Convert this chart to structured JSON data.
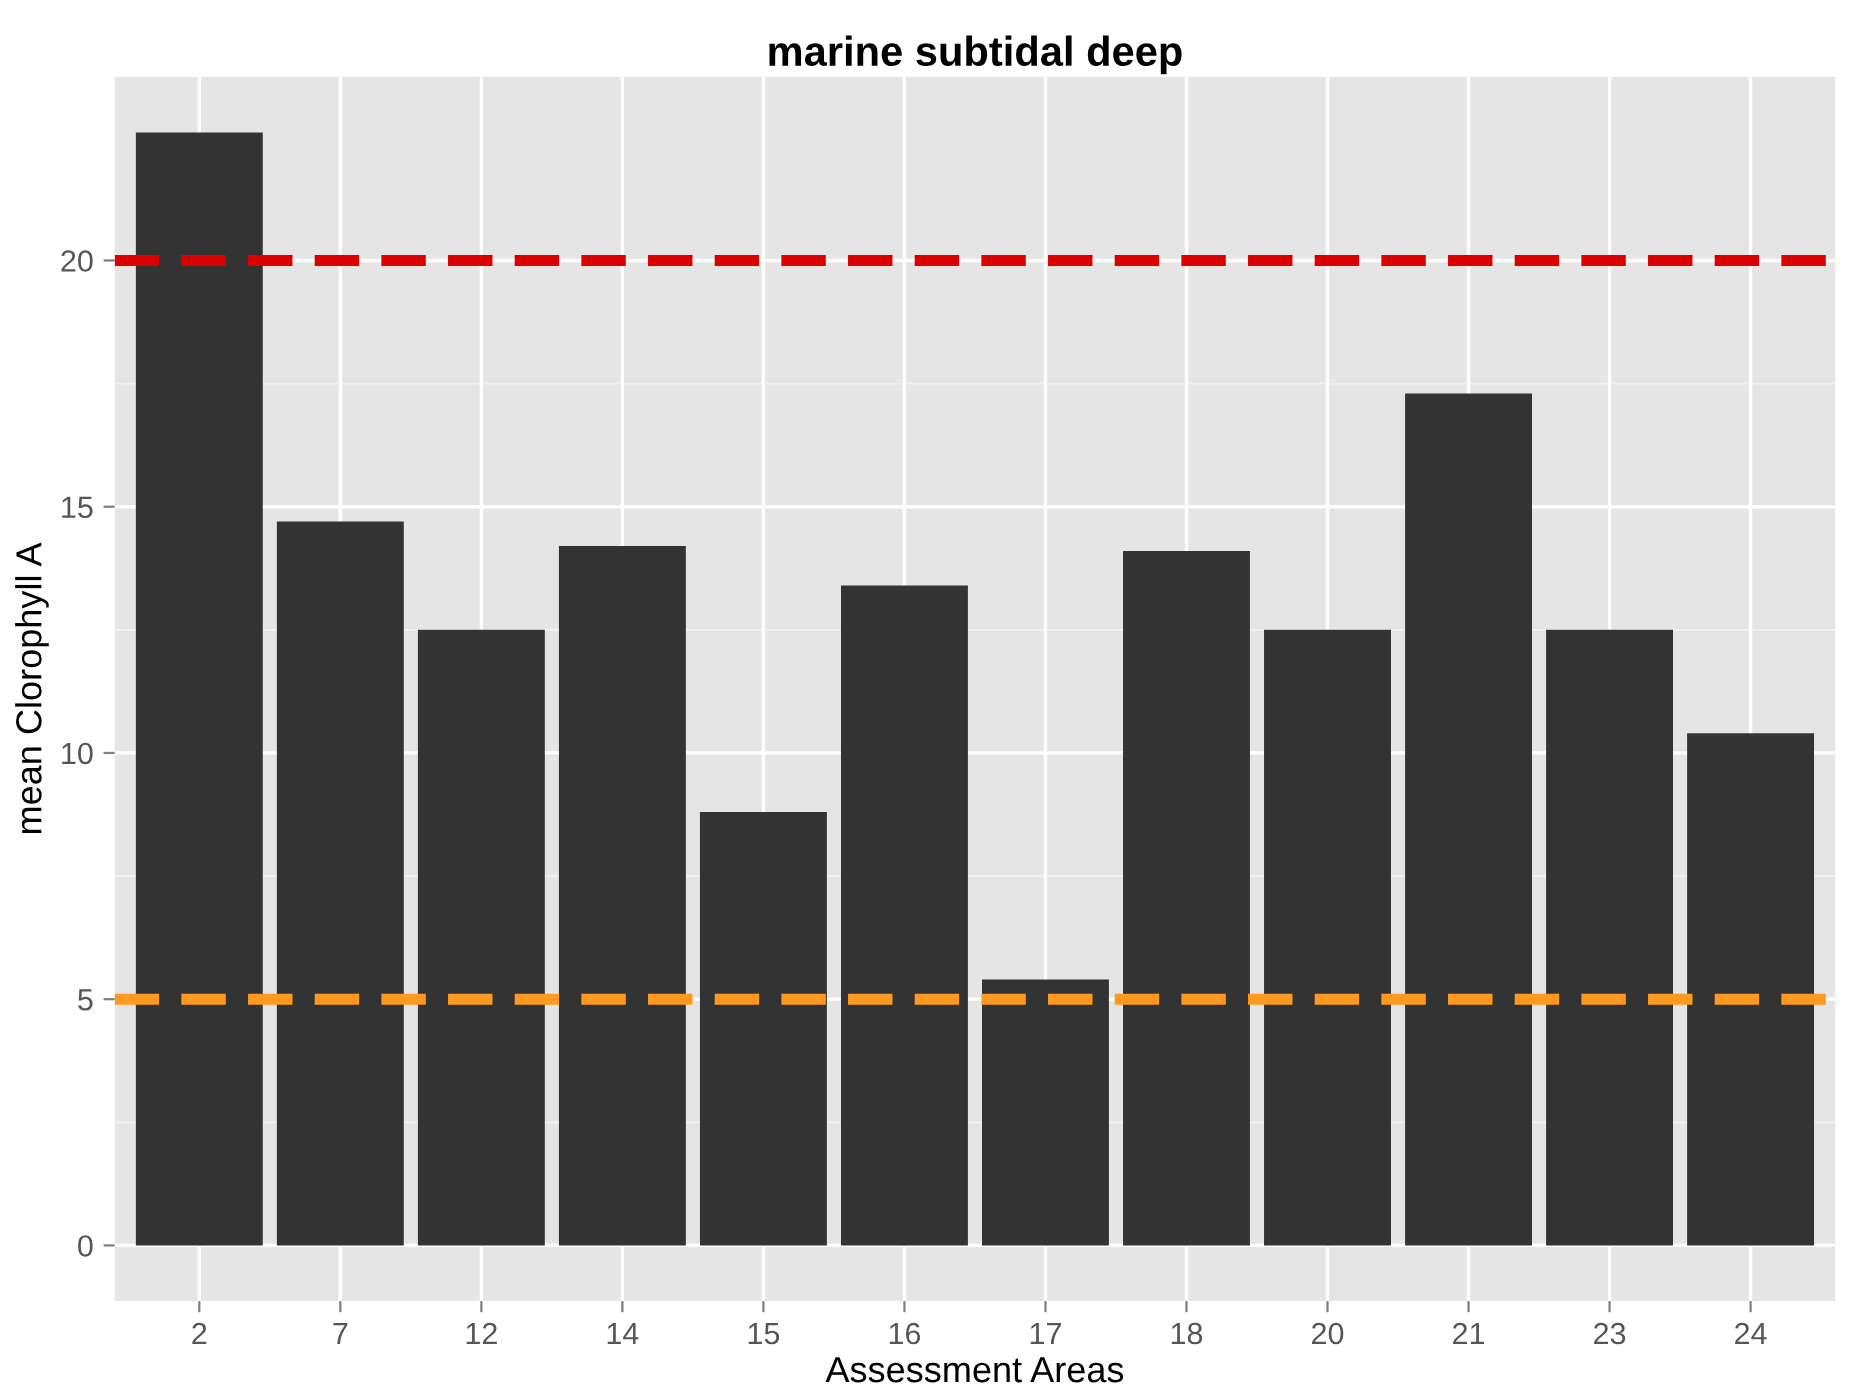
{
  "chart_data": {
    "type": "bar",
    "title": "marine subtidal deep",
    "xlabel": "Assessment Areas",
    "ylabel": "mean Clorophyll A",
    "categories": [
      "2",
      "7",
      "12",
      "14",
      "15",
      "16",
      "17",
      "18",
      "20",
      "21",
      "23",
      "24"
    ],
    "values": [
      22.6,
      14.7,
      12.5,
      14.2,
      8.8,
      13.4,
      5.4,
      14.1,
      12.5,
      17.3,
      12.5,
      10.4
    ],
    "color": "#333333",
    "ylim": [
      -1.13,
      23.73
    ],
    "yticks": [
      0,
      5,
      10,
      15,
      20
    ],
    "grid": true,
    "ref_lines": [
      {
        "axis": "y",
        "value": 20,
        "color": "#dd0000",
        "line_style": "dashed"
      },
      {
        "axis": "y",
        "value": 5,
        "color": "#ff9922",
        "line_style": "dashed"
      }
    ]
  }
}
